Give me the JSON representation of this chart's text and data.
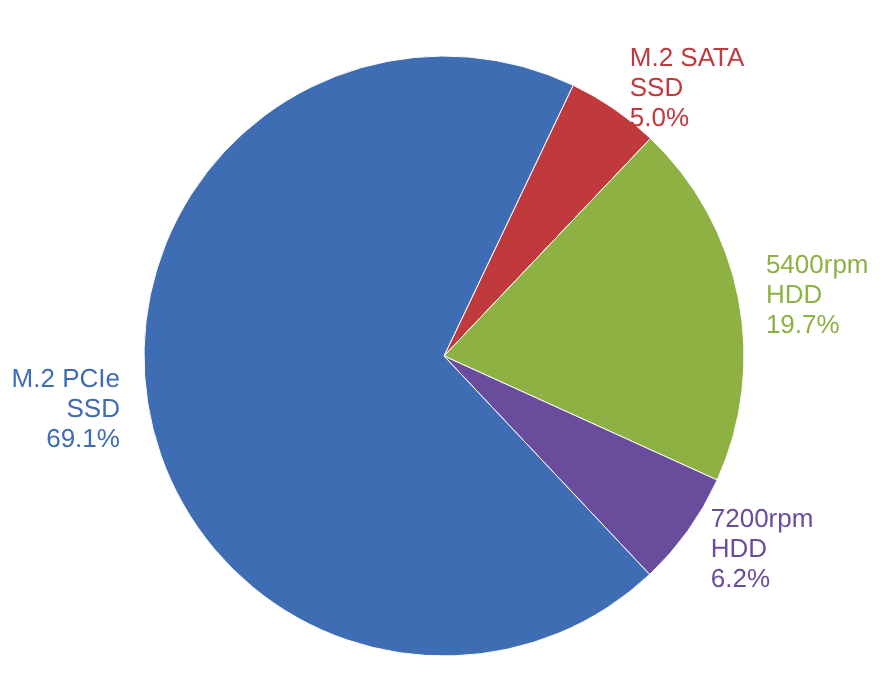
{
  "chart_data": {
    "type": "pie",
    "categories": [
      "M.2 SATA SSD",
      "5400rpm HDD",
      "7200rpm HDD",
      "M.2 PCIe SSD"
    ],
    "values": [
      5.0,
      19.7,
      6.2,
      69.1
    ],
    "colors": [
      "#c0393d",
      "#8db243",
      "#6a4c9c",
      "#3f6db3"
    ],
    "value_labels": [
      "5.0%",
      "19.7%",
      "6.2%",
      "69.1%"
    ]
  }
}
